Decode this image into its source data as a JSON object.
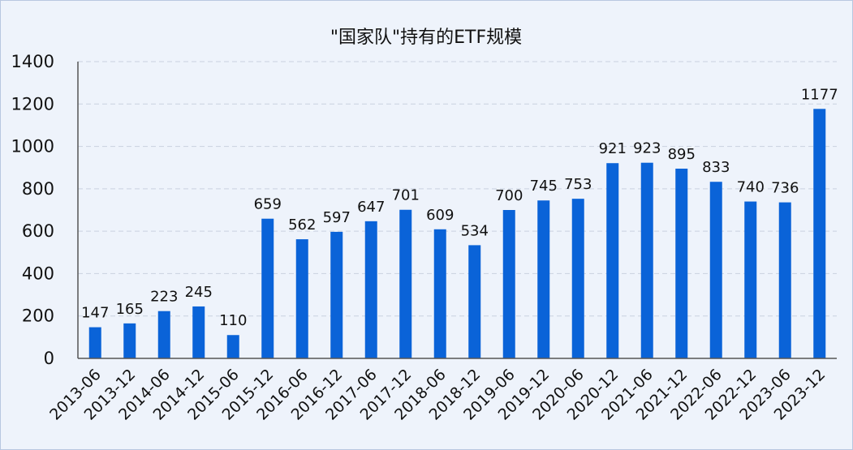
{
  "chart_data": {
    "type": "bar",
    "title": "\"国家队\"持有的ETF规模",
    "xlabel": "",
    "ylabel": "",
    "ylim": [
      0,
      1400
    ],
    "yticks": [
      0,
      200,
      400,
      600,
      800,
      1000,
      1200,
      1400
    ],
    "grid": true,
    "bar_color": "#0a63d8",
    "categories": [
      "2013-06",
      "2013-12",
      "2014-06",
      "2014-12",
      "2015-06",
      "2015-12",
      "2016-06",
      "2016-12",
      "2017-06",
      "2017-12",
      "2018-06",
      "2018-12",
      "2019-06",
      "2019-12",
      "2020-06",
      "2020-12",
      "2021-06",
      "2021-12",
      "2022-06",
      "2022-12",
      "2023-06",
      "2023-12"
    ],
    "values": [
      147,
      165,
      223,
      245,
      110,
      659,
      562,
      597,
      647,
      701,
      609,
      534,
      700,
      745,
      753,
      921,
      923,
      895,
      833,
      740,
      736,
      1177
    ]
  }
}
